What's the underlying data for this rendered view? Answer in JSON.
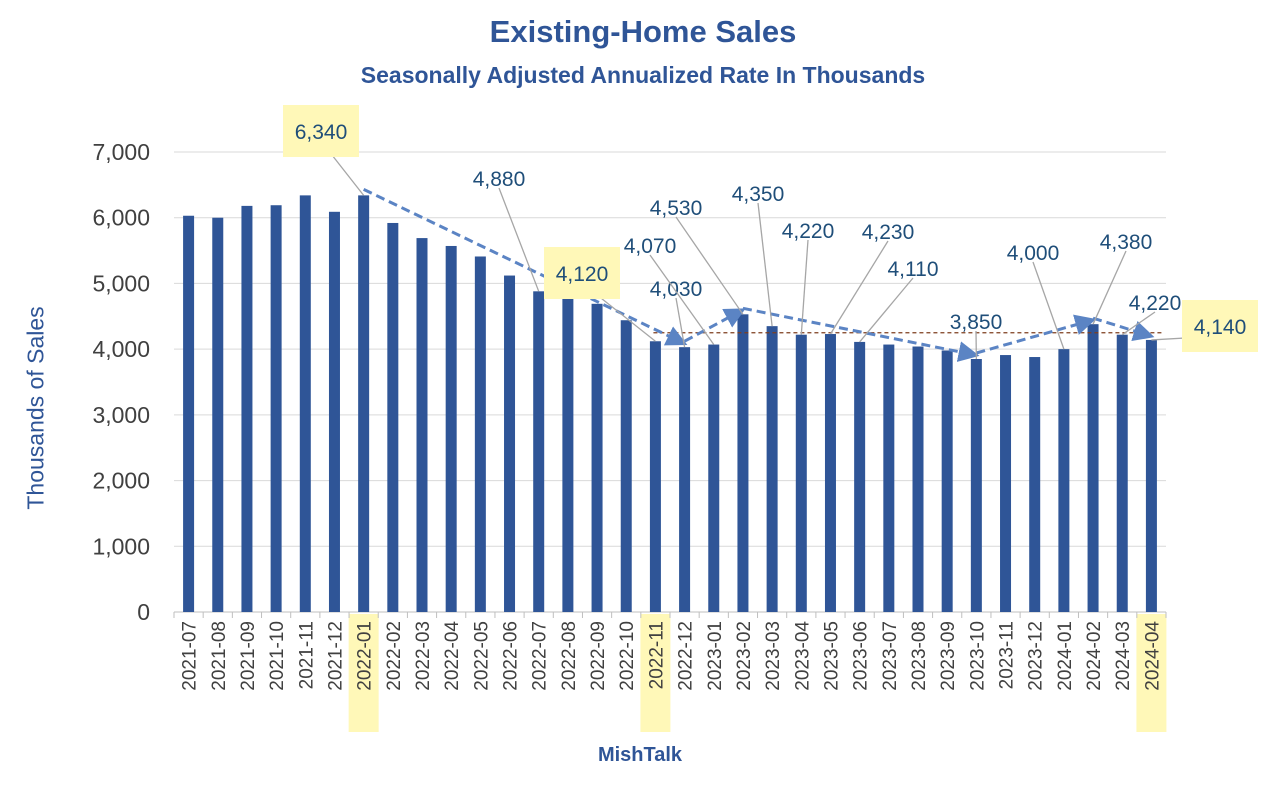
{
  "chart_data": {
    "type": "bar",
    "title": "Existing-Home Sales",
    "subtitle": "Seasonally Adjusted Annualized Rate In Thousands",
    "xlabel": "MishTalk",
    "ylabel": "Thousands of Sales",
    "ylim": [
      0,
      7000
    ],
    "yticks": [
      "0",
      "1,000",
      "2,000",
      "3,000",
      "4,000",
      "5,000",
      "6,000",
      "7,000"
    ],
    "grid": true,
    "bar_color": "#2F5597",
    "highlight_color": "#FFF8B8",
    "annotation_color": "#1F4E79",
    "categories": [
      "2021-07",
      "2021-08",
      "2021-09",
      "2021-10",
      "2021-11",
      "2021-12",
      "2022-01",
      "2022-02",
      "2022-03",
      "2022-04",
      "2022-05",
      "2022-06",
      "2022-07",
      "2022-08",
      "2022-09",
      "2022-10",
      "2022-11",
      "2022-12",
      "2023-01",
      "2023-02",
      "2023-03",
      "2023-04",
      "2023-05",
      "2023-06",
      "2023-07",
      "2023-08",
      "2023-09",
      "2023-10",
      "2023-11",
      "2023-12",
      "2024-01",
      "2024-02",
      "2024-03",
      "2024-04"
    ],
    "values": [
      6030,
      6000,
      6180,
      6190,
      6340,
      6090,
      6340,
      5920,
      5690,
      5570,
      5410,
      5120,
      4880,
      4780,
      4690,
      4440,
      4120,
      4030,
      4070,
      4530,
      4350,
      4220,
      4230,
      4110,
      4070,
      4040,
      3980,
      3850,
      3910,
      3880,
      4000,
      4380,
      4220,
      4140
    ],
    "highlighted_categories": [
      "2022-01",
      "2022-11",
      "2024-04"
    ],
    "data_labels": [
      {
        "category": "2022-01",
        "text": "6,340",
        "highlight": true
      },
      {
        "category": "2022-07",
        "text": "4,880",
        "highlight": false
      },
      {
        "category": "2022-11",
        "text": "4,120",
        "highlight": true
      },
      {
        "category": "2022-12",
        "text": "4,030",
        "highlight": false
      },
      {
        "category": "2023-01",
        "text": "4,070",
        "highlight": false
      },
      {
        "category": "2023-02",
        "text": "4,530",
        "highlight": false
      },
      {
        "category": "2023-03",
        "text": "4,350",
        "highlight": false
      },
      {
        "category": "2023-04",
        "text": "4,220",
        "highlight": false
      },
      {
        "category": "2023-05",
        "text": "4,230",
        "highlight": false
      },
      {
        "category": "2023-06",
        "text": "4,110",
        "highlight": false
      },
      {
        "category": "2023-10",
        "text": "3,850",
        "highlight": false
      },
      {
        "category": "2024-01",
        "text": "4,000",
        "highlight": false
      },
      {
        "category": "2024-02",
        "text": "4,380",
        "highlight": false
      },
      {
        "category": "2024-03",
        "text": "4,220",
        "highlight": false
      },
      {
        "category": "2024-04",
        "text": "4,140",
        "highlight": true
      }
    ],
    "trend_arrows": [
      {
        "from": "2022-01",
        "to": "2022-12"
      },
      {
        "from": "2022-12",
        "to": "2023-02"
      },
      {
        "from": "2023-02",
        "to": "2023-10"
      },
      {
        "from": "2023-10",
        "to": "2024-02"
      },
      {
        "from": "2024-02",
        "to": "2024-04"
      }
    ],
    "reference_line": {
      "value": 4250,
      "from": "2022-11",
      "to": "2024-04",
      "color": "#7F3F1F"
    }
  }
}
